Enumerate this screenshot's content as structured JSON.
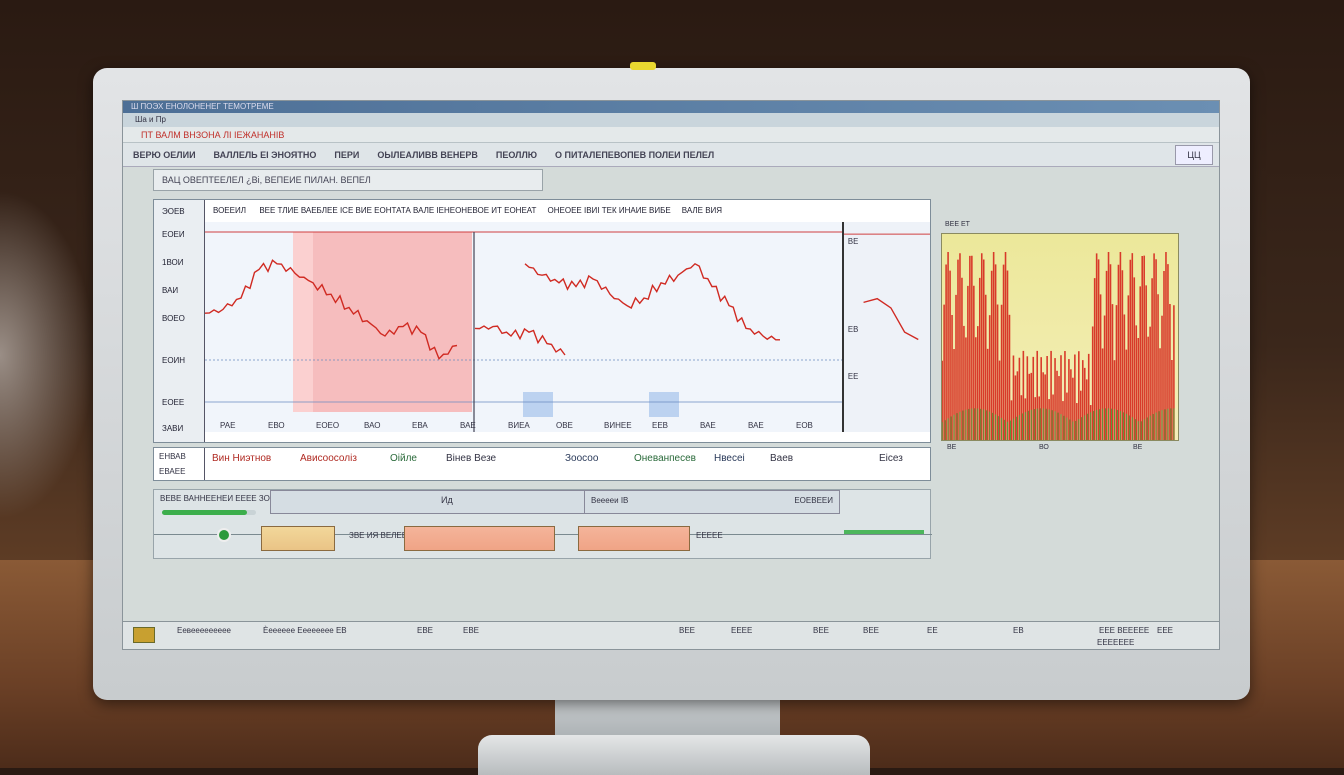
{
  "window": {
    "title": "Ш ПОЭХ ЕНОЛОНЕНЕГ ТЕМОТРЕМЕ",
    "menu": "Ша и Пр"
  },
  "header": {
    "red_title": "ПТ ВАЛМ ВНЗОНА ЛІ ІЕЖАНАНІВ"
  },
  "toolbar": {
    "items": [
      "ВЕРЮ ОЕЛИИ",
      "ВАЛЛЕЛЬ ЕІ ЭНОЯТНО",
      "ПЕРИ",
      "ОЫЛЕАЛИВВ ВЕНЕРВ",
      "ПЕОЛЛЮ",
      "О ПИТАЛЕПЕВОПЕВ ПОЛЕИ ПЕЛЕЛ"
    ],
    "corner_button": "ЦЦ"
  },
  "search": {
    "value": "ВАЦ ОВЕПТЕЕЛЕЛ    ¿Ві, ВЕПЕИЕ ПИЛАН. ВЕПЕЛ"
  },
  "chart_panel": {
    "header": [
      "ВОЕЕИЛ",
      "ВЕЕ ТЛИЕ ВАЕБЛЕЕ ІСЕ ВИЕ ЕОНТАТА ВАЛЕ ІЕНЕОНЕВОЕ ИТ ЕОНЕАТ",
      "ОНЕОЕЕ ІВИІ ТЕК ИНАИЕ ВИБЕ",
      "ВАЛЕ ВИЯ"
    ],
    "corner_label": "ЭОЕВ",
    "y_labels": [
      "ЕОЕИ",
      "1ВОИ",
      "ВАИ",
      "ВОЕО",
      "ЕОИН",
      "ЕОЕЕ",
      "ЗАВИ"
    ],
    "x_labels": [
      "РАЕ",
      "ЕВО",
      "ЕОЕО",
      "ВАО",
      "ЕВА",
      "ВАЕ",
      "ВИЕА",
      "ОВЕ",
      "ВИНЕЕ",
      "ЕЕВ",
      "ВАЕ",
      "ВАЕ",
      "ЕОВ"
    ],
    "side_labels": [
      "ВЕ",
      "ЕВ",
      "ЕЕ"
    ]
  },
  "chart_data": {
    "type": "line",
    "series": [
      {
        "values": [
          52,
          54,
          60,
          75,
          78,
          73,
          68,
          62,
          55,
          48,
          40,
          45,
          42,
          28,
          35,
          null,
          44,
          45,
          40,
          42,
          36,
          30,
          null,
          78,
          72,
          68,
          66,
          70,
          62,
          56,
          60,
          68,
          72,
          78,
          66,
          56,
          44,
          40,
          38
        ]
      }
    ],
    "side_series": [
      {
        "values": [
          58,
          60,
          55,
          42,
          38
        ]
      }
    ],
    "highlight_color": "#f7a9a9",
    "line_color": "#d02a22"
  },
  "right_chart": {
    "labels": [
      "ВЕ",
      "ВО",
      "ВЕ"
    ],
    "title": "ВЕЕ ЕТ"
  },
  "legend": {
    "items": [
      "Вин Ниэтнов",
      "Ависоосоліз",
      "Оійле",
      "Вінев Везе",
      "Зоосоо",
      "Оневанпесев",
      "Нвесеі",
      "Ваев",
      "Еісез"
    ],
    "row_label_1": "ЕНВАВ",
    "row_label_2": "ЕВАЕЕ"
  },
  "lower": {
    "label": "ВЕВЕ ВАННЕЕНЕИ ЕЕЕЕ ЗОНЮ",
    "field1": "Ид",
    "field2": "Вееееи ІВ",
    "field3": "ЕОЕВЕЕИ",
    "mid_label": "ЗВЕ ИЯ ВЕЛЕЕ",
    "right_label": "ЕЕЕЕЕ",
    "progress": 0.9
  },
  "status": {
    "items": [
      "Еевеееееееее",
      "Ѐееееее  Ееееееее ЕВ",
      "ЕВЕ",
      "ЕВЕ",
      "ВЕЕ",
      "ЕЕЕЕ",
      "ВЕЕ",
      "ВЕЕ",
      "ЕЕ",
      "ЕВ",
      "ЕЕЕ ВЕЕЕЕЕ",
      "ЕЕЕЕЕЕЕ",
      "ЕЕЕ"
    ]
  }
}
